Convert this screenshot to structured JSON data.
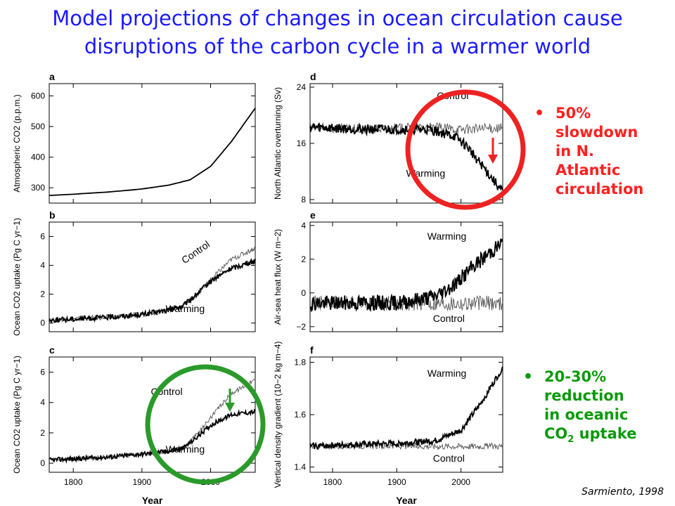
{
  "title": {
    "line1": "Model projections of changes in ocean circulation cause",
    "line2": "disruptions of the carbon cycle in a warmer world"
  },
  "notes": [
    {
      "color": "#ff2020",
      "lines": [
        "50%",
        "slowdown",
        "in N.",
        "Atlantic",
        "circulation"
      ]
    },
    {
      "color": "#0a9a0a",
      "lines": [
        "20-30%",
        "reduction",
        "in oceanic"
      ],
      "last_main": "CO",
      "last_sub": "2",
      "last_tail": " uptake"
    }
  ],
  "credit": "Sarmiento, 1998",
  "colors": {
    "title": "#1a1aff",
    "red_annotation": "#ee2222",
    "green_annotation": "#2a9a2a"
  },
  "chart_data": [
    {
      "panel": "a",
      "type": "line",
      "ylabel": "Atmospheric CO2 (p.p.m.)",
      "yticks": [
        300,
        400,
        500,
        600
      ],
      "ylim": [
        250,
        640
      ],
      "xlim": [
        1765,
        2065
      ],
      "series": [
        {
          "x": [
            1765,
            1800,
            1850,
            1900,
            1940,
            1970,
            2000,
            2030,
            2065
          ],
          "y": [
            275,
            279,
            286,
            296,
            309,
            326,
            370,
            450,
            560
          ]
        }
      ]
    },
    {
      "panel": "b",
      "type": "line",
      "ylabel": "Ocean CO2 uptake (Pg C yr−1)",
      "yticks": [
        0,
        2,
        4,
        6
      ],
      "ylim": [
        -0.6,
        7
      ],
      "xlim": [
        1765,
        2065
      ],
      "labels": [
        "Control",
        "Warming"
      ],
      "series": [
        {
          "name": "Control",
          "x": [
            1765,
            1850,
            1900,
            1940,
            1960,
            1980,
            2000,
            2030,
            2065
          ],
          "y": [
            0.2,
            0.4,
            0.6,
            0.9,
            1.2,
            2.0,
            3.0,
            4.4,
            5.2
          ]
        },
        {
          "name": "Warming",
          "x": [
            1765,
            1850,
            1900,
            1940,
            1960,
            1980,
            2000,
            2030,
            2065
          ],
          "y": [
            0.2,
            0.4,
            0.6,
            0.9,
            1.2,
            2.0,
            2.9,
            3.8,
            4.3
          ]
        }
      ]
    },
    {
      "panel": "c",
      "type": "line",
      "ylabel": "Ocean CO2 uptake (Pg C yr−1)",
      "yticks": [
        0,
        2,
        4,
        6
      ],
      "ylim": [
        -0.6,
        7
      ],
      "xlim": [
        1765,
        2065
      ],
      "xticks": [
        1800,
        1900,
        2000
      ],
      "xlabel": "Year",
      "labels": [
        "Control",
        "Warming"
      ],
      "series": [
        {
          "name": "Control",
          "x": [
            1765,
            1850,
            1900,
            1940,
            1960,
            1980,
            2000,
            2030,
            2065
          ],
          "y": [
            0.2,
            0.4,
            0.6,
            0.8,
            1.0,
            1.9,
            3.0,
            4.6,
            5.5
          ]
        },
        {
          "name": "Warming",
          "x": [
            1765,
            1850,
            1900,
            1940,
            1960,
            1980,
            2000,
            2030,
            2065
          ],
          "y": [
            0.2,
            0.4,
            0.6,
            0.8,
            1.0,
            1.7,
            2.5,
            3.2,
            3.4
          ]
        }
      ]
    },
    {
      "panel": "d",
      "type": "line",
      "ylabel": "North Atlantic overturning (Sv)",
      "yticks": [
        8,
        16,
        24
      ],
      "ylim": [
        7.5,
        24.5
      ],
      "xlim": [
        1765,
        2065
      ],
      "labels": [
        "Control",
        "Warming"
      ],
      "series": [
        {
          "name": "Control",
          "x": [
            1765,
            1850,
            1950,
            2000,
            2065
          ],
          "y": [
            18.2,
            18,
            18.3,
            18,
            18.2
          ]
        },
        {
          "name": "Warming",
          "x": [
            1765,
            1850,
            1950,
            1990,
            2010,
            2040,
            2065
          ],
          "y": [
            18.3,
            18,
            18,
            17,
            15.5,
            12,
            9
          ]
        }
      ]
    },
    {
      "panel": "e",
      "type": "line",
      "ylabel": "Air-sea heat flux (W m−2)",
      "yticks": [
        -2,
        0,
        2,
        4
      ],
      "ylim": [
        -2.3,
        4.2
      ],
      "xlim": [
        1765,
        2065
      ],
      "labels": [
        "Warming",
        "Control"
      ],
      "series": [
        {
          "name": "Control",
          "x": [
            1765,
            1900,
            2000,
            2065
          ],
          "y": [
            -0.6,
            -0.6,
            -0.6,
            -0.6
          ]
        },
        {
          "name": "Warming",
          "x": [
            1765,
            1900,
            1960,
            1990,
            2020,
            2065
          ],
          "y": [
            -0.6,
            -0.6,
            -0.2,
            0.5,
            1.6,
            3.0
          ]
        }
      ]
    },
    {
      "panel": "f",
      "type": "line",
      "ylabel": "Vertical density gradient (10−2 kg m−4)",
      "yticks": [
        1.4,
        1.6,
        1.8
      ],
      "ylim": [
        1.38,
        1.82
      ],
      "xlim": [
        1765,
        2065
      ],
      "xticks": [
        1800,
        1900,
        2000
      ],
      "xlabel": "Year",
      "labels": [
        "Warming",
        "Control"
      ],
      "series": [
        {
          "name": "Control",
          "x": [
            1765,
            1900,
            2000,
            2065
          ],
          "y": [
            1.48,
            1.48,
            1.48,
            1.48
          ]
        },
        {
          "name": "Warming",
          "x": [
            1765,
            1900,
            1960,
            2000,
            2030,
            2065
          ],
          "y": [
            1.48,
            1.49,
            1.5,
            1.54,
            1.64,
            1.78
          ]
        }
      ]
    }
  ]
}
